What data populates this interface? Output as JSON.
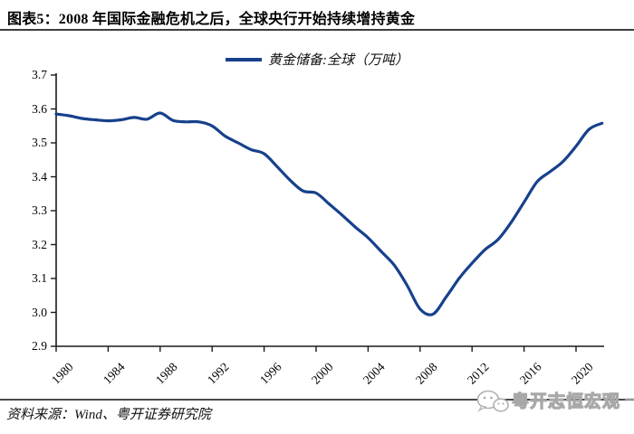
{
  "header": {
    "title": "图表5：2008 年国际金融危机之后，全球央行开始持续增持黄金"
  },
  "legend": {
    "label": "黄金储备:全球（万吨）"
  },
  "chart_data": {
    "type": "line",
    "title": "图表5：2008 年国际金融危机之后，全球央行开始持续增持黄金",
    "xlabel": "",
    "ylabel": "",
    "ylim": [
      2.9,
      3.7
    ],
    "xlim": [
      1980,
      2022
    ],
    "grid": false,
    "legend_position": "top-center",
    "line_color": "#16418c",
    "axis_color": "#1a1a1a",
    "y_tick_labels": [
      "3.7",
      "3.6",
      "3.5",
      "3.4",
      "3.3",
      "3.2",
      "3.1",
      "3.0",
      "2.9"
    ],
    "x_tick_labels": [
      "1980",
      "1984",
      "1988",
      "1992",
      "1996",
      "2000",
      "2004",
      "2008",
      "2012",
      "2016",
      "2020"
    ],
    "series": [
      {
        "name": "黄金储备:全球（万吨）",
        "x": [
          1980,
          1981,
          1982,
          1983,
          1984,
          1985,
          1986,
          1987,
          1988,
          1989,
          1990,
          1991,
          1992,
          1993,
          1994,
          1995,
          1996,
          1997,
          1998,
          1999,
          2000,
          2001,
          2002,
          2003,
          2004,
          2005,
          2006,
          2007,
          2008,
          2009,
          2010,
          2011,
          2012,
          2013,
          2014,
          2015,
          2016,
          2017,
          2018,
          2019,
          2020,
          2021,
          2022
        ],
        "values": [
          3.585,
          3.58,
          3.572,
          3.568,
          3.565,
          3.568,
          3.575,
          3.57,
          3.588,
          3.566,
          3.562,
          3.562,
          3.55,
          3.52,
          3.5,
          3.48,
          3.468,
          3.43,
          3.39,
          3.358,
          3.352,
          3.32,
          3.287,
          3.252,
          3.22,
          3.18,
          3.14,
          3.08,
          3.01,
          2.995,
          3.045,
          3.1,
          3.145,
          3.185,
          3.215,
          3.265,
          3.325,
          3.385,
          3.415,
          3.445,
          3.49,
          3.54,
          3.558
        ]
      }
    ]
  },
  "footer": {
    "source": "资料来源：Wind、粤开证券研究院"
  },
  "watermark": {
    "text": "粤开志恒宏观",
    "icon": "wechat-icon",
    "color": "#b0b0b0"
  }
}
